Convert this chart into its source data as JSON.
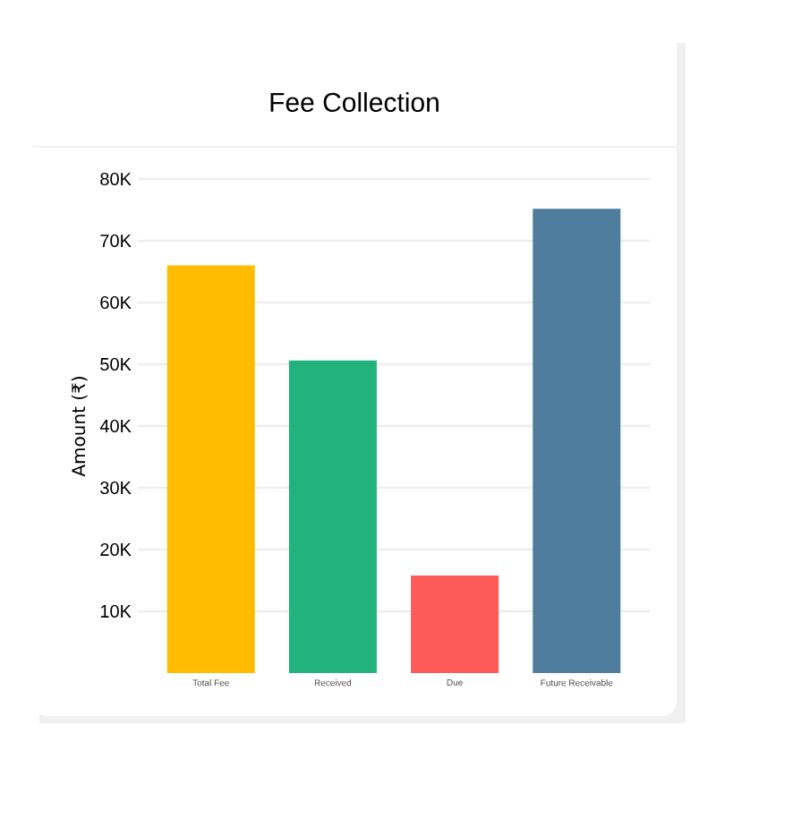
{
  "chart_data": {
    "type": "bar",
    "title": "Fee Collection",
    "ylabel": "Amount (₹)",
    "categories": [
      "Total Fee",
      "Received",
      "Due",
      "Future Receivable"
    ],
    "values": [
      66000,
      50600,
      15800,
      75200
    ],
    "colors": [
      "#ffbc00",
      "#22b27d",
      "#ff5a5a",
      "#4e7d9e"
    ],
    "ylim": [
      0,
      80000
    ],
    "yticks": [
      {
        "value": 10000,
        "label": "10K"
      },
      {
        "value": 20000,
        "label": "20K"
      },
      {
        "value": 30000,
        "label": "30K"
      },
      {
        "value": 40000,
        "label": "40K"
      },
      {
        "value": 50000,
        "label": "50K"
      },
      {
        "value": 60000,
        "label": "60K"
      },
      {
        "value": 70000,
        "label": "70K"
      },
      {
        "value": 80000,
        "label": "80K"
      }
    ],
    "grid": "y"
  }
}
